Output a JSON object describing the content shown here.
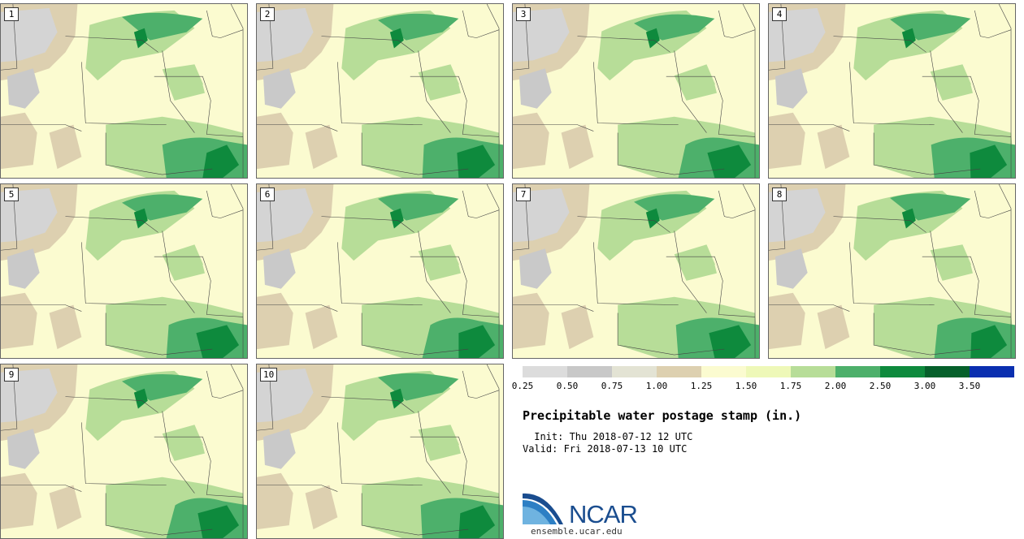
{
  "stamps": [
    "1",
    "2",
    "3",
    "4",
    "5",
    "6",
    "7",
    "8",
    "9",
    "10"
  ],
  "legend": {
    "colors": [
      "#dcdcdc",
      "#c8c8c8",
      "#e3e3d4",
      "#ddd0b0",
      "#fbfbd0",
      "#eef8b8",
      "#b7dd98",
      "#4db06b",
      "#0e8a3d",
      "#06602b",
      "#0a2fb0"
    ],
    "ticks": [
      "0.25",
      "0.50",
      "0.75",
      "1.00",
      "1.25",
      "1.50",
      "1.75",
      "2.00",
      "2.50",
      "3.00",
      "3.50"
    ]
  },
  "title": "Precipitable water postage stamp (in.)",
  "init": " Init: Thu 2018-07-12 12 UTC",
  "valid": "Valid: Fri 2018-07-13 10 UTC",
  "logo_text": "NCAR",
  "site": "ensemble.ucar.edu"
}
